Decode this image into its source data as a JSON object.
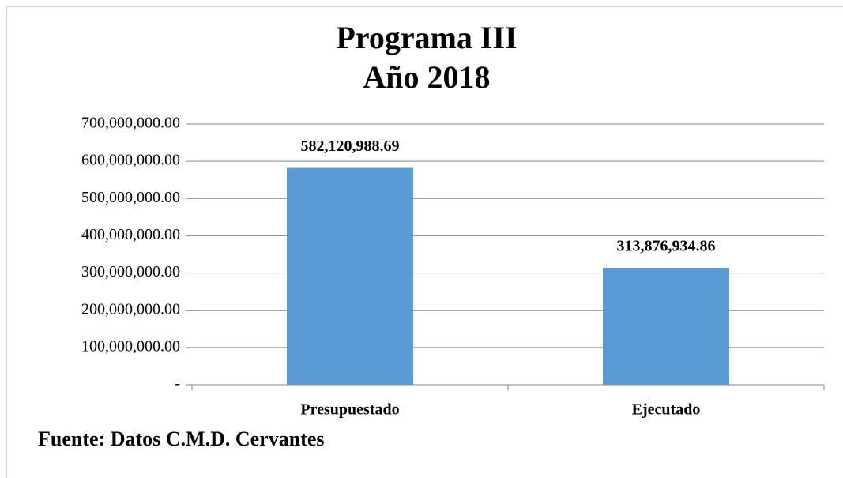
{
  "chart_data": {
    "type": "bar",
    "title": "Programa III",
    "subtitle": "Año 2018",
    "categories": [
      "Presupuestado",
      "Ejecutado"
    ],
    "values": [
      582120988.69,
      313876934.86
    ],
    "value_labels": [
      "582,120,988.69",
      "313,876,934.86"
    ],
    "color": "#5b9bd5",
    "ylim": [
      0,
      700000000
    ],
    "yticks": [
      {
        "value": 0,
        "label": "-"
      },
      {
        "value": 100000000,
        "label": "100,000,000.00"
      },
      {
        "value": 200000000,
        "label": "200,000,000.00"
      },
      {
        "value": 300000000,
        "label": "300,000,000.00"
      },
      {
        "value": 400000000,
        "label": "400,000,000.00"
      },
      {
        "value": 500000000,
        "label": "500,000,000.00"
      },
      {
        "value": 600000000,
        "label": "600,000,000.00"
      },
      {
        "value": 700000000,
        "label": "700,000,000.00"
      }
    ],
    "grid": true,
    "source": "Fuente: Datos C.M.D. Cervantes"
  }
}
